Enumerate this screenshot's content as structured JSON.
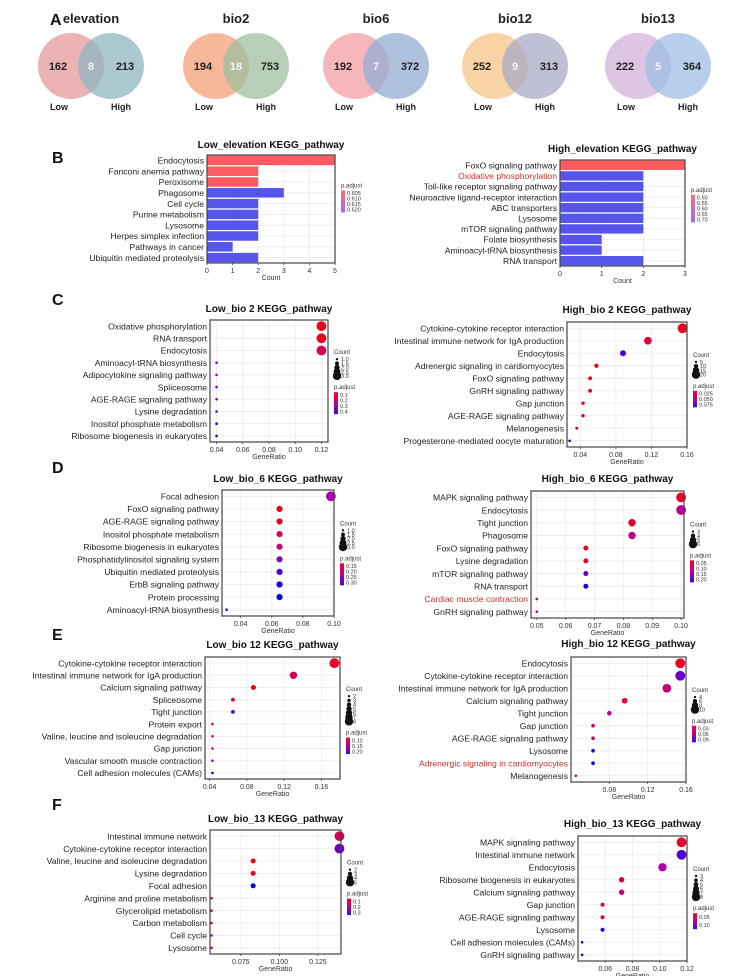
{
  "panel_letters": [
    "A",
    "B",
    "C",
    "D",
    "E",
    "F"
  ],
  "venn": {
    "labels": {
      "low": "Low",
      "high": "High"
    },
    "items": [
      {
        "title": "elevation",
        "low": 162,
        "shared": 8,
        "high": 213,
        "low_color": "#e7a0a2",
        "high_color": "#8fb6c2"
      },
      {
        "title": "bio2",
        "low": 194,
        "shared": 18,
        "high": 753,
        "low_color": "#f6a582",
        "high_color": "#9dbf9e"
      },
      {
        "title": "bio6",
        "low": 192,
        "shared": 7,
        "high": 372,
        "low_color": "#f3a5ab",
        "high_color": "#93aed4"
      },
      {
        "title": "bio12",
        "low": 252,
        "shared": 9,
        "high": 313,
        "low_color": "#f6c98e",
        "high_color": "#a9abc6"
      },
      {
        "title": "bio13",
        "low": 222,
        "shared": 5,
        "high": 364,
        "low_color": "#d4b7dc",
        "high_color": "#9fbde6"
      }
    ]
  },
  "chart_data": [
    {
      "id": "B-left",
      "type": "bar",
      "title": "Low_elevation KEGG_pathway",
      "xlabel": "Count",
      "xlim": [
        0,
        5
      ],
      "xticks": [
        0,
        1,
        2,
        3,
        4,
        5
      ],
      "categories": [
        "Endocytosis",
        "Fanconi anemia pathway",
        "Peroxisome",
        "Phagosome",
        "Cell cycle",
        "Purine metabolism",
        "Lysosome",
        "Herpes simplex infection",
        "Pathways in cancer",
        "Ubiquitin mediated proteolysis"
      ],
      "values": [
        5,
        2,
        2,
        3,
        2,
        2,
        2,
        2,
        1,
        2
      ],
      "p_adjust": [
        0.605,
        0.605,
        0.605,
        0.62,
        0.62,
        0.62,
        0.62,
        0.62,
        0.62,
        0.62
      ],
      "highlight": [],
      "legend": {
        "color_title": "p.adjust",
        "color_ticks": [
          "0.605",
          "0.610",
          "0.615",
          "0.620"
        ],
        "p_range": [
          0.605,
          0.62
        ]
      }
    },
    {
      "id": "B-right",
      "type": "bar",
      "title": "High_elevation KEGG_pathway",
      "xlabel": "Count",
      "xlim": [
        0,
        3
      ],
      "xticks": [
        0,
        1,
        2,
        3
      ],
      "categories": [
        "FoxO signaling pathway",
        "Oxidative phosphorylation",
        "Toll-like receptor signaling pathway",
        "Neuroactive ligand-receptor interaction",
        "ABC transporters",
        "Lysosome",
        "mTOR signaling pathway",
        "Folate biosynthesis",
        "Aminoacyl-tRNA biosynthesis",
        "RNA transport"
      ],
      "values": [
        3,
        2,
        2,
        2,
        2,
        2,
        2,
        1,
        1,
        2
      ],
      "p_adjust": [
        0.5,
        0.7,
        0.7,
        0.7,
        0.7,
        0.7,
        0.7,
        0.7,
        0.7,
        0.7
      ],
      "highlight": [
        "Oxidative phosphorylation"
      ],
      "legend": {
        "color_title": "p.adjust",
        "color_ticks": [
          "0.50",
          "0.55",
          "0.60",
          "0.65",
          "0.70"
        ],
        "p_range": [
          0.5,
          0.7
        ]
      }
    },
    {
      "id": "C-left",
      "type": "scatter",
      "title": "Low_bio 2 KEGG_pathway",
      "xlabel": "GeneRatio",
      "xlim": [
        0.035,
        0.125
      ],
      "xticks": [
        0.04,
        0.06,
        0.08,
        0.1,
        0.12
      ],
      "categories": [
        "Oxidative phosphorylation",
        "RNA transport",
        "Endocytosis",
        "Aminoacyl-tRNA biosynthesis",
        "Adipocytokine signaling pathway",
        "Spliceosome",
        "AGE-RAGE signaling pathway",
        "Lysine degradation",
        "Inositol phosphate metabolism",
        "Ribosome biogenesis in eukaryotes"
      ],
      "x": [
        0.12,
        0.12,
        0.12,
        0.04,
        0.04,
        0.04,
        0.04,
        0.04,
        0.04,
        0.04
      ],
      "count": [
        3,
        3,
        3,
        1,
        1,
        1,
        1,
        1,
        1,
        1
      ],
      "p_adjust": [
        0.02,
        0.03,
        0.1,
        0.18,
        0.2,
        0.25,
        0.27,
        0.3,
        0.38,
        0.42
      ],
      "highlight": [],
      "legend": {
        "size_title": "Count",
        "size_ticks": [
          "1.0",
          "1.5",
          "2.0",
          "2.5",
          "3.0"
        ],
        "color_title": "p.adjust",
        "color_ticks": [
          "0.1",
          "0.2",
          "0.3",
          "0.4"
        ],
        "p_range": [
          0.02,
          0.42
        ],
        "count_range": [
          1,
          3
        ]
      }
    },
    {
      "id": "C-right",
      "type": "scatter",
      "title": "High_bio 2 KEGG_pathway",
      "xlabel": "GeneRatio",
      "xlim": [
        0.025,
        0.16
      ],
      "xticks": [
        0.04,
        0.08,
        0.12,
        0.16
      ],
      "categories": [
        "Cytokine-cytokine receptor interaction",
        "Intestinal immune network for IgA production",
        "Endocytosis",
        "Adrenergic signaling in cardiomyocytes",
        "FoxO signaling pathway",
        "GnRH signaling pathway",
        "Gap junction",
        "AGE-RAGE signaling pathway",
        "Melanogenesis",
        "Progesterone-mediated oocyte maturation"
      ],
      "x": [
        0.155,
        0.116,
        0.088,
        0.058,
        0.051,
        0.051,
        0.043,
        0.043,
        0.036,
        0.028
      ],
      "count": [
        20,
        15,
        11,
        7,
        6,
        6,
        5,
        5,
        4,
        3
      ],
      "p_adjust": [
        0.001,
        0.012,
        0.07,
        0.005,
        0.003,
        0.005,
        0.006,
        0.02,
        0.008,
        0.09
      ],
      "highlight": [],
      "legend": {
        "size_title": "Count",
        "size_ticks": [
          "5",
          "10",
          "15",
          "20"
        ],
        "color_title": "p.adjust",
        "color_ticks": [
          "0.025",
          "0.050",
          "0.075"
        ],
        "p_range": [
          0.0,
          0.09
        ],
        "count_range": [
          3,
          20
        ]
      }
    },
    {
      "id": "D-left",
      "type": "scatter",
      "title": "Low_bio_6 KEGG_pathway",
      "xlabel": "GeneRatio",
      "xlim": [
        0.028,
        0.1
      ],
      "xticks": [
        0.04,
        0.06,
        0.08,
        0.1
      ],
      "categories": [
        "Focal adhesion",
        "FoxO signaling pathway",
        "AGE-RAGE signaling pathway",
        "Inositol phosphate metabolism",
        "Ribosome biogenesis in eukaryotes",
        "Phosphatidylinositol signaling system",
        "Ubiquitin mediated proteolysis",
        "ErbB signaling pathway",
        "Protein processing",
        "Aminoacyl-tRNA biosynthesis"
      ],
      "x": [
        0.098,
        0.065,
        0.065,
        0.065,
        0.065,
        0.065,
        0.065,
        0.065,
        0.065,
        0.031
      ],
      "count": [
        3,
        2,
        2,
        2,
        2,
        2,
        2,
        2,
        2,
        1
      ],
      "p_adjust": [
        0.22,
        0.13,
        0.14,
        0.17,
        0.18,
        0.24,
        0.27,
        0.3,
        0.31,
        0.27
      ],
      "highlight": [],
      "legend": {
        "size_title": "Count",
        "size_ticks": [
          "1.0",
          "1.5",
          "2.0",
          "2.5",
          "3.0"
        ],
        "color_title": "p.adjust",
        "color_ticks": [
          "0.15",
          "0.20",
          "0.25",
          "0.30"
        ],
        "p_range": [
          0.13,
          0.31
        ],
        "count_range": [
          1,
          3
        ]
      }
    },
    {
      "id": "D-right",
      "type": "scatter",
      "title": "High_bio_6 KEGG_pathway",
      "xlabel": "GeneRatio",
      "xlim": [
        0.048,
        0.101
      ],
      "xticks": [
        0.05,
        0.06,
        0.07,
        0.08,
        0.09,
        0.1
      ],
      "categories": [
        "MAPK signaling pathway",
        "Endocytosis",
        "Tight junction",
        "Phagosome",
        "FoxO signaling pathway",
        "Lysine degradation",
        "mTOR signaling pathway",
        "RNA transport",
        "Cardiac muscle contraction",
        "GnRH signaling pathway"
      ],
      "x": [
        0.1,
        0.1,
        0.083,
        0.083,
        0.067,
        0.067,
        0.067,
        0.067,
        0.05,
        0.05
      ],
      "count": [
        6,
        6,
        5,
        5,
        4,
        4,
        4,
        4,
        3,
        3
      ],
      "p_adjust": [
        0.03,
        0.1,
        0.04,
        0.09,
        0.03,
        0.035,
        0.15,
        0.2,
        0.06,
        0.07
      ],
      "highlight": [
        "Cardiac muscle contraction"
      ],
      "legend": {
        "size_title": "Count",
        "size_ticks": [
          "3",
          "4",
          "5",
          "6"
        ],
        "color_title": "p.adjust",
        "color_ticks": [
          "0.05",
          "0.10",
          "0.15",
          "0.20"
        ],
        "p_range": [
          0.02,
          0.21
        ],
        "count_range": [
          3,
          6
        ]
      }
    },
    {
      "id": "E-left",
      "type": "scatter",
      "title": "Low_bio 12 KEGG_pathway",
      "xlabel": "GeneRatio",
      "xlim": [
        0.035,
        0.18
      ],
      "xticks": [
        0.04,
        0.08,
        0.12,
        0.16
      ],
      "categories": [
        "Cytokine-cytokine receptor interaction",
        "Intestinal immune network for IgA production",
        "Calcium signaling pathway",
        "Spliceosome",
        "Tight junction",
        "Protein export",
        "Valine, leucine and isoleucine degradation",
        "Gap junction",
        "Vascular smooth muscle contraction",
        "Cell adhesion molecules (CAMs)"
      ],
      "x": [
        0.174,
        0.13,
        0.087,
        0.065,
        0.065,
        0.043,
        0.043,
        0.043,
        0.043,
        0.043
      ],
      "count": [
        8,
        6,
        4,
        3,
        3,
        2,
        2,
        2,
        2,
        2
      ],
      "p_adjust": [
        0.07,
        0.09,
        0.06,
        0.07,
        0.18,
        0.09,
        0.1,
        0.13,
        0.15,
        0.22
      ],
      "highlight": [],
      "legend": {
        "size_title": "Count",
        "size_ticks": [
          "2",
          "3",
          "4",
          "5",
          "6",
          "7",
          "8"
        ],
        "color_title": "p.adjust",
        "color_ticks": [
          "0.10",
          "0.15",
          "0.20"
        ],
        "p_range": [
          0.06,
          0.22
        ],
        "count_range": [
          2,
          8
        ]
      }
    },
    {
      "id": "E-right",
      "type": "scatter",
      "title": "High_bio 12 KEGG_pathway",
      "xlabel": "GeneRatio",
      "xlim": [
        0.04,
        0.16
      ],
      "xticks": [
        0.08,
        0.12,
        0.16
      ],
      "categories": [
        "Endocytosis",
        "Cytokine-cytokine receptor interaction",
        "Intestinal immune network for IgA production",
        "Calcium signaling pathway",
        "Tight junction",
        "Gap junction",
        "AGE-RAGE signaling pathway",
        "Lysosome",
        "Adrenergic signaling in cardiomyocytes",
        "Melanogenesis"
      ],
      "x": [
        0.154,
        0.154,
        0.14,
        0.096,
        0.08,
        0.063,
        0.063,
        0.063,
        0.063,
        0.045
      ],
      "count": [
        10,
        10,
        9,
        6,
        5,
        4,
        4,
        4,
        4,
        3
      ],
      "p_adjust": [
        0.005,
        0.07,
        0.03,
        0.01,
        0.04,
        0.02,
        0.025,
        0.095,
        0.1,
        0.03
      ],
      "highlight": [
        "Adrenergic signaling in cardiomyocytes"
      ],
      "legend": {
        "size_title": "Count",
        "size_ticks": [
          "4",
          "6",
          "8",
          "10"
        ],
        "color_title": "p.adjust",
        "color_ticks": [
          "0.03",
          "0.06",
          "0.09"
        ],
        "p_range": [
          0.0,
          0.1
        ],
        "count_range": [
          3,
          10
        ]
      }
    },
    {
      "id": "F-left",
      "type": "scatter",
      "title": "Low_bio_13 KEGG_pathway",
      "xlabel": "GeneRatio",
      "xlim": [
        0.055,
        0.14
      ],
      "xticks": [
        0.075,
        0.1,
        0.125
      ],
      "categories": [
        "Intestinal immune network",
        "Cytokine-cytokine receptor interaction",
        "Valine, leucine and isoleucine degradation",
        "Lysine degradation",
        "Focal adhesion",
        "Arginine and proline metabolism",
        "Glycerolipid metabolism",
        "Carbon metabolism",
        "Cell cycle",
        "Lysosome"
      ],
      "x": [
        0.139,
        0.139,
        0.083,
        0.083,
        0.083,
        0.056,
        0.056,
        0.056,
        0.056,
        0.056
      ],
      "count": [
        5,
        5,
        3,
        3,
        3,
        2,
        2,
        2,
        2,
        2
      ],
      "p_adjust": [
        0.08,
        0.25,
        0.03,
        0.04,
        0.35,
        0.08,
        0.08,
        0.09,
        0.18,
        0.22
      ],
      "highlight": [],
      "legend": {
        "size_title": "Count",
        "size_ticks": [
          "2",
          "3",
          "4",
          "5"
        ],
        "color_title": "p.adjust",
        "color_ticks": [
          "0.1",
          "0.2",
          "0.3"
        ],
        "p_range": [
          0.02,
          0.36
        ],
        "count_range": [
          2,
          5
        ]
      }
    },
    {
      "id": "F-right",
      "type": "scatter",
      "title": "High_bio_13 KEGG_pathway",
      "xlabel": "GeneRatio",
      "xlim": [
        0.04,
        0.12
      ],
      "xticks": [
        0.06,
        0.08,
        0.1,
        0.12
      ],
      "categories": [
        "MAPK signaling pathway",
        "Intestinal immune network",
        "Endocytosis",
        "Ribosome biogenesis in eukaryotes",
        "Calcium signaling pathway",
        "Gap junction",
        "AGE-RAGE signaling pathway",
        "Lysosome",
        "Cell adhesion molecules (CAMs)",
        "GnRH signaling pathway"
      ],
      "x": [
        0.116,
        0.116,
        0.102,
        0.072,
        0.072,
        0.058,
        0.058,
        0.058,
        0.043,
        0.043
      ],
      "count": [
        8,
        8,
        7,
        5,
        5,
        4,
        4,
        4,
        3,
        3
      ],
      "p_adjust": [
        0.01,
        0.1,
        0.06,
        0.02,
        0.04,
        0.01,
        0.02,
        0.11,
        0.13,
        0.13
      ],
      "highlight": [],
      "legend": {
        "size_title": "Count",
        "size_ticks": [
          "3",
          "4",
          "5",
          "6",
          "7",
          "8"
        ],
        "color_title": "p.adjust",
        "color_ticks": [
          "0.05",
          "0.10"
        ],
        "p_range": [
          0.0,
          0.13
        ],
        "count_range": [
          3,
          8
        ]
      }
    }
  ]
}
